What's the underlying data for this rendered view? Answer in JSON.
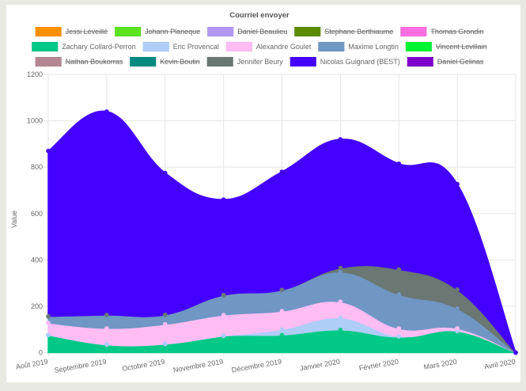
{
  "chart_data": {
    "type": "area",
    "stacked": true,
    "title": "Courriel envoyer",
    "xlabel": "",
    "ylabel": "Value",
    "ylim": [
      0,
      1200
    ],
    "yticks": [
      0,
      200,
      400,
      600,
      800,
      1000,
      1200
    ],
    "grid": true,
    "legend_position": "top",
    "categories": [
      "Août 2019",
      "Septembre 2019",
      "Octobre 2019",
      "Novembre 2019",
      "Décembre 2019",
      "Janvier 2020",
      "Février 2020",
      "Mars 2020",
      "Avril 2020"
    ],
    "series": [
      {
        "name": "Jessi Léveillé",
        "color": "#ff9100",
        "hidden": true,
        "values": []
      },
      {
        "name": "Johann Planeque",
        "color": "#5be31f",
        "hidden": true,
        "values": []
      },
      {
        "name": "Daniel Beaulieu",
        "color": "#b197f2",
        "hidden": true,
        "values": []
      },
      {
        "name": "Stephane Berthiaume",
        "color": "#5a8a00",
        "hidden": true,
        "values": []
      },
      {
        "name": "Thomas Grondin",
        "color": "#ff6ee0",
        "hidden": true,
        "values": []
      },
      {
        "name": "Zachary Collard-Perron",
        "color": "#00c987",
        "hidden": false,
        "values": [
          76,
          34,
          37,
          72,
          76,
          98,
          67,
          93,
          0
        ]
      },
      {
        "name": "Eric Provencal",
        "color": "#aecdf7",
        "hidden": false,
        "values": [
          0,
          0,
          0,
          0,
          24,
          52,
          3,
          0,
          0
        ]
      },
      {
        "name": "Alexandre Goulet",
        "color": "#ffbdf4",
        "hidden": false,
        "values": [
          52,
          71,
          85,
          90,
          79,
          69,
          34,
          12,
          0
        ]
      },
      {
        "name": "Maxime Longtin",
        "color": "#7096c4",
        "hidden": false,
        "values": [
          28,
          57,
          41,
          86,
          91,
          129,
          147,
          85,
          0
        ]
      },
      {
        "name": "Vincent Levillain",
        "color": "#00f531",
        "hidden": true,
        "values": []
      },
      {
        "name": "Nathan Boukorras",
        "color": "#b58793",
        "hidden": true,
        "values": []
      },
      {
        "name": "Kevin Boutin",
        "color": "#008a80",
        "hidden": true,
        "values": []
      },
      {
        "name": "Jennifer Beury",
        "color": "#6a7773",
        "hidden": false,
        "values": [
          0,
          0,
          0,
          0,
          0,
          17,
          108,
          82,
          0
        ]
      },
      {
        "name": "Nicolas Guignard (BEST)",
        "color": "#4400ff",
        "hidden": false,
        "values": [
          714,
          878,
          612,
          412,
          510,
          555,
          456,
          455,
          0
        ]
      },
      {
        "name": "Daniel Gelinas",
        "color": "#7f00cc",
        "hidden": true,
        "values": []
      }
    ],
    "stack_order": [
      "Zachary Collard-Perron",
      "Eric Provencal",
      "Alexandre Goulet",
      "Maxime Longtin",
      "Jennifer Beury",
      "Nicolas Guignard (BEST)"
    ],
    "totals": [
      870,
      1040,
      775,
      660,
      780,
      920,
      815,
      727,
      0
    ]
  }
}
